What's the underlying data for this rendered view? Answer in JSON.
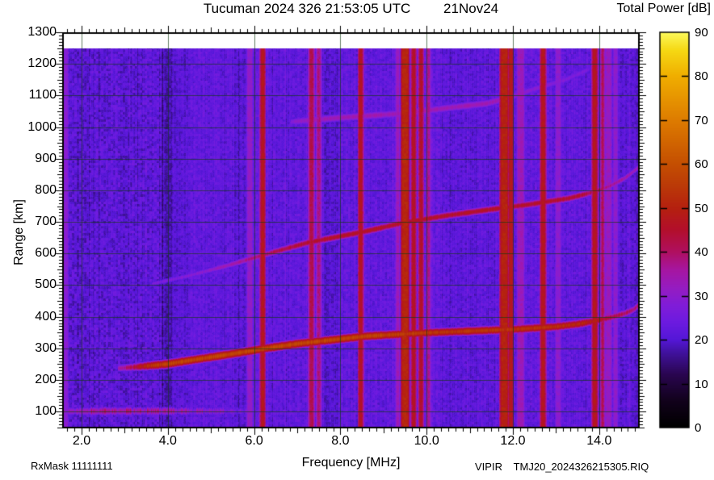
{
  "chart_data": {
    "type": "heatmap",
    "title": "Tucuman 2024 326 21:53:05 UTC",
    "date_label": "21Nov24",
    "colorbar_title": "Total Power [dB]",
    "xlabel": "Frequency [MHz]",
    "ylabel": "Range [km]",
    "footer_left": "RxMask 11111111",
    "instrument_label": "VIPIR",
    "file_label": "TMJ20_2024326215305.RIQ",
    "x_axis": {
      "min": 1.55,
      "max": 14.94,
      "unit": "MHz",
      "tick_values": [
        2,
        4,
        6,
        8,
        10,
        12,
        14
      ],
      "tick_labels": [
        "2.0",
        "4.0",
        "6.0",
        "8.0",
        "10.0",
        "12.0",
        "14.0"
      ],
      "minor_step": 0.1667,
      "medium_step": 1
    },
    "y_axis": {
      "min": 47,
      "max": 1300,
      "unit": "km",
      "tick_values": [
        100,
        200,
        300,
        400,
        500,
        600,
        700,
        800,
        900,
        1000,
        1100,
        1200,
        1300
      ],
      "tick_labels": [
        "100",
        "200",
        "300",
        "400",
        "500",
        "600",
        "700",
        "800",
        "900",
        "1000",
        "1100",
        "1200",
        "1300"
      ],
      "minor_step": 10,
      "medium_step": 50,
      "data_top": 1250
    },
    "colorbar": {
      "min": 0,
      "max": 90,
      "tick_values": [
        0,
        10,
        20,
        30,
        40,
        50,
        60,
        70,
        80,
        90
      ],
      "tick_labels": [
        "0",
        "10",
        "20",
        "30",
        "40",
        "50",
        "60",
        "70",
        "80",
        "90"
      ]
    },
    "colormap": [
      [
        0,
        "#000000"
      ],
      [
        6,
        "#12021c"
      ],
      [
        12,
        "#2a0650"
      ],
      [
        17,
        "#41129e"
      ],
      [
        20,
        "#5517d8"
      ],
      [
        24,
        "#6d1be0"
      ],
      [
        28,
        "#821dd8"
      ],
      [
        32,
        "#971cc0"
      ],
      [
        36,
        "#a716a0"
      ],
      [
        40,
        "#b01060"
      ],
      [
        45,
        "#b30f2c"
      ],
      [
        50,
        "#b52110"
      ],
      [
        55,
        "#bb3a08"
      ],
      [
        60,
        "#c54f02"
      ],
      [
        70,
        "#de7c00"
      ],
      [
        80,
        "#f0ae00"
      ],
      [
        86,
        "#f6d914"
      ],
      [
        90,
        "#fbf95a"
      ]
    ],
    "background": {
      "base_db": 22.2,
      "cell_sigma_db": 2.4,
      "regions": [
        {
          "f0": 1.55,
          "f1": 3.85,
          "delta": -1.0,
          "sigma": 3.4
        },
        {
          "f0": 3.85,
          "f1": 4.1,
          "delta": -4.5
        },
        {
          "f0": 4.1,
          "f1": 4.5,
          "delta": -1.5
        },
        {
          "f0": 5.55,
          "f1": 5.8,
          "delta": -1.5
        },
        {
          "f0": 7.55,
          "f1": 7.95,
          "delta": -2.0
        },
        {
          "f0": 9.25,
          "f1": 10.15,
          "delta": 1.5
        },
        {
          "f0": 10.45,
          "f1": 11.25,
          "delta": -1.0
        },
        {
          "f0": 14.45,
          "f1": 14.94,
          "delta": -1.5
        }
      ]
    },
    "rfi_stripes": [
      {
        "f": 1.62,
        "width": 0.1,
        "db": 29
      },
      {
        "f": 5.9,
        "width": 0.09,
        "db": 31
      },
      {
        "f": 6.2,
        "width": 0.05,
        "db": 47
      },
      {
        "f": 7.33,
        "width": 0.06,
        "db": 42
      },
      {
        "f": 7.5,
        "width": 0.05,
        "db": 38
      },
      {
        "f": 8.47,
        "width": 0.05,
        "db": 46
      },
      {
        "f": 9.33,
        "width": 0.05,
        "db": 33
      },
      {
        "f": 9.5,
        "width": 0.11,
        "db": 51
      },
      {
        "f": 9.7,
        "width": 0.05,
        "db": 46
      },
      {
        "f": 9.87,
        "width": 0.05,
        "db": 45
      },
      {
        "f": 10.04,
        "width": 0.04,
        "db": 37
      },
      {
        "f": 11.8,
        "width": 0.12,
        "db": 50
      },
      {
        "f": 11.95,
        "width": 0.05,
        "db": 48
      },
      {
        "f": 12.18,
        "width": 0.12,
        "db": 33
      },
      {
        "f": 12.7,
        "width": 0.06,
        "db": 47
      },
      {
        "f": 13.05,
        "width": 0.09,
        "db": 30
      },
      {
        "f": 13.9,
        "width": 0.06,
        "db": 47
      },
      {
        "f": 14.08,
        "width": 0.03,
        "db": 41
      },
      {
        "f": 14.22,
        "width": 0.1,
        "db": 32
      },
      {
        "f": 14.38,
        "width": 0.07,
        "db": 30
      }
    ],
    "traces": [
      {
        "name": "E-region echo",
        "points": [
          [
            1.57,
            102
          ],
          [
            3.0,
            103
          ],
          [
            4.5,
            103
          ],
          [
            6.2,
            102
          ]
        ],
        "levels": [
          [
            1.57,
            29
          ],
          [
            1.8,
            32
          ],
          [
            2.1,
            36
          ],
          [
            3.6,
            36
          ],
          [
            4.2,
            33
          ],
          [
            5.0,
            29
          ],
          [
            6.2,
            24
          ]
        ],
        "sigma_km": 8,
        "speckle_db": 5,
        "blob_db": 6
      },
      {
        "name": "F-region echo 1st hop",
        "points": [
          [
            2.85,
            238
          ],
          [
            3.3,
            243
          ],
          [
            4.0,
            252
          ],
          [
            4.45,
            262
          ],
          [
            5.4,
            282
          ],
          [
            6.3,
            302
          ],
          [
            7.0,
            316
          ],
          [
            7.8,
            328
          ],
          [
            8.6,
            340
          ],
          [
            9.9,
            350
          ],
          [
            11.0,
            356
          ],
          [
            12.1,
            362
          ],
          [
            13.0,
            370
          ],
          [
            13.5,
            378
          ],
          [
            13.9,
            388
          ],
          [
            14.3,
            400
          ],
          [
            14.6,
            412
          ],
          [
            14.8,
            424
          ],
          [
            14.9,
            436
          ]
        ],
        "levels": [
          [
            2.85,
            35
          ],
          [
            3.1,
            40
          ],
          [
            3.5,
            52
          ],
          [
            4.0,
            57
          ],
          [
            6.0,
            58
          ],
          [
            9.4,
            56
          ],
          [
            10.0,
            54
          ],
          [
            12.0,
            54
          ],
          [
            13.4,
            52
          ],
          [
            13.9,
            48
          ],
          [
            14.2,
            44
          ],
          [
            14.5,
            41
          ],
          [
            14.9,
            39
          ]
        ],
        "sigma_km": 6.5,
        "speckle_db": 2.5,
        "blob_db": 0
      },
      {
        "name": "F-region echo 2nd hop",
        "points": [
          [
            3.62,
            505
          ],
          [
            4.4,
            528
          ],
          [
            5.35,
            562
          ],
          [
            6.3,
            600
          ],
          [
            7.25,
            636
          ],
          [
            8.6,
            672
          ],
          [
            9.5,
            700
          ],
          [
            10.5,
            722
          ],
          [
            11.5,
            741
          ],
          [
            12.35,
            756
          ],
          [
            13.3,
            776
          ],
          [
            13.9,
            797
          ],
          [
            14.25,
            815
          ],
          [
            14.6,
            840
          ],
          [
            14.9,
            872
          ]
        ],
        "levels": [
          [
            3.62,
            26
          ],
          [
            4.3,
            28
          ],
          [
            5.0,
            31
          ],
          [
            5.6,
            36
          ],
          [
            6.2,
            40
          ],
          [
            7.0,
            44
          ],
          [
            8.0,
            46
          ],
          [
            12.0,
            46
          ],
          [
            13.5,
            45
          ],
          [
            13.95,
            40
          ],
          [
            14.3,
            37
          ],
          [
            14.9,
            33
          ]
        ],
        "sigma_km": 6,
        "speckle_db": 2,
        "blob_db": 0
      },
      {
        "name": "F-region echo 3rd hop",
        "points": [
          [
            6.85,
            1018
          ],
          [
            8.0,
            1031
          ],
          [
            9.5,
            1045
          ],
          [
            10.5,
            1062
          ],
          [
            11.4,
            1076
          ],
          [
            11.95,
            1096
          ],
          [
            12.5,
            1122
          ],
          [
            13.2,
            1150
          ],
          [
            13.78,
            1185
          ]
        ],
        "levels": [
          [
            6.85,
            29
          ],
          [
            7.3,
            33
          ],
          [
            8.0,
            34
          ],
          [
            11.5,
            34
          ],
          [
            12.1,
            31
          ],
          [
            12.6,
            29
          ],
          [
            13.3,
            28
          ],
          [
            13.78,
            26
          ]
        ],
        "sigma_km": 8,
        "speckle_db": 1.5,
        "blob_db": 0
      }
    ]
  }
}
